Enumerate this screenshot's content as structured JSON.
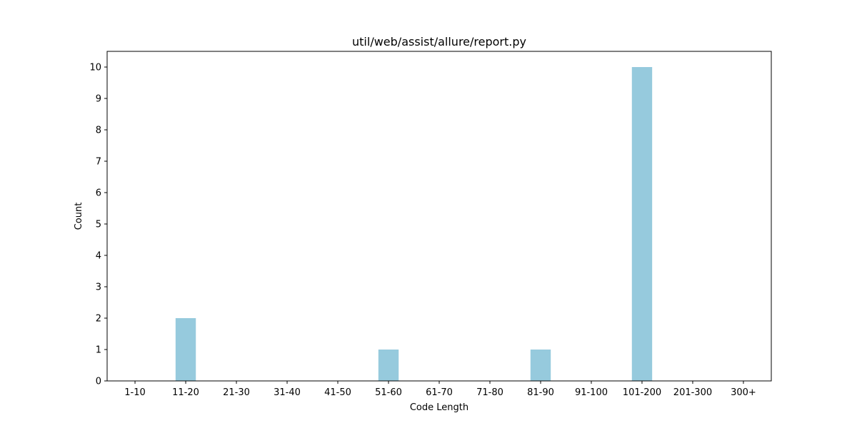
{
  "chart_data": {
    "type": "bar",
    "title": "util/web/assist/allure/report.py",
    "xlabel": "Code Length",
    "ylabel": "Count",
    "categories": [
      "1-10",
      "11-20",
      "21-30",
      "31-40",
      "41-50",
      "51-60",
      "61-70",
      "71-80",
      "81-90",
      "91-100",
      "101-200",
      "201-300",
      "300+"
    ],
    "values": [
      0,
      2,
      0,
      0,
      0,
      1,
      0,
      0,
      1,
      0,
      10,
      0,
      0
    ],
    "ylim": [
      0,
      10.5
    ],
    "yticks": [
      0,
      1,
      2,
      3,
      4,
      5,
      6,
      7,
      8,
      9,
      10
    ],
    "bar_color": "#96cadd",
    "grid": false,
    "legend": "none"
  }
}
